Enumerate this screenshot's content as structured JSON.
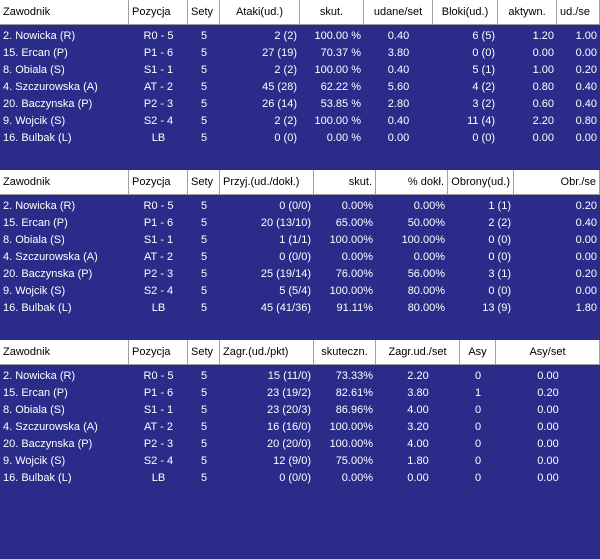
{
  "attack": {
    "headers": [
      "Zawodnik",
      "Pozycja",
      "Sety",
      "Ataki(ud.)",
      "skut.",
      "udane/set",
      "Bloki(ud.)",
      "aktywn.",
      "ud./se"
    ],
    "rows": [
      [
        "2. Nowicka (R)",
        "R0 - 5",
        "5",
        "2 (2)",
        "100.00 %",
        "0.40",
        "6 (5)",
        "1.20",
        "1.00"
      ],
      [
        "15. Ercan (P)",
        "P1 - 6",
        "5",
        "27 (19)",
        "70.37 %",
        "3.80",
        "0 (0)",
        "0.00",
        "0.00"
      ],
      [
        "8. Obiala (S)",
        "S1 - 1",
        "5",
        "2 (2)",
        "100.00 %",
        "0.40",
        "5 (1)",
        "1.00",
        "0.20"
      ],
      [
        "4. Szczurowska (A)",
        "AT - 2",
        "5",
        "45 (28)",
        "62.22 %",
        "5.60",
        "4 (2)",
        "0.80",
        "0.40"
      ],
      [
        "20. Baczynska (P)",
        "P2 - 3",
        "5",
        "26 (14)",
        "53.85 %",
        "2.80",
        "3 (2)",
        "0.60",
        "0.40"
      ],
      [
        "9. Wojcik (S)",
        "S2 - 4",
        "5",
        "2 (2)",
        "100.00 %",
        "0.40",
        "11 (4)",
        "2.20",
        "0.80"
      ],
      [
        "16. Bulbak (L)",
        "LB",
        "5",
        "0 (0)",
        "0.00 %",
        "0.00",
        "0 (0)",
        "0.00",
        "0.00"
      ]
    ]
  },
  "reception": {
    "headers": [
      "Zawodnik",
      "Pozycja",
      "Sety",
      "Przyj.(ud./dokł.)",
      "skut.",
      "% dokł.",
      "Obrony(ud.)",
      "Obr./se"
    ],
    "rows": [
      [
        "2. Nowicka (R)",
        "R0 - 5",
        "5",
        "0 (0/0)",
        "0.00%",
        "0.00%",
        "1 (1)",
        "0.20"
      ],
      [
        "15. Ercan (P)",
        "P1 - 6",
        "5",
        "20 (13/10)",
        "65.00%",
        "50.00%",
        "2 (2)",
        "0.40"
      ],
      [
        "8. Obiala (S)",
        "S1 - 1",
        "5",
        "1 (1/1)",
        "100.00%",
        "100.00%",
        "0 (0)",
        "0.00"
      ],
      [
        "4. Szczurowska (A)",
        "AT - 2",
        "5",
        "0 (0/0)",
        "0.00%",
        "0.00%",
        "0 (0)",
        "0.00"
      ],
      [
        "20. Baczynska (P)",
        "P2 - 3",
        "5",
        "25 (19/14)",
        "76.00%",
        "56.00%",
        "3 (1)",
        "0.20"
      ],
      [
        "9. Wojcik (S)",
        "S2 - 4",
        "5",
        "5 (5/4)",
        "100.00%",
        "80.00%",
        "0 (0)",
        "0.00"
      ],
      [
        "16. Bulbak (L)",
        "LB",
        "5",
        "45 (41/36)",
        "91.11%",
        "80.00%",
        "13 (9)",
        "1.80"
      ]
    ]
  },
  "serve": {
    "headers": [
      "Zawodnik",
      "Pozycja",
      "Sety",
      "Zagr.(ud./pkt)",
      "skuteczn.",
      "Zagr.ud./set",
      "Asy",
      "Asy/set"
    ],
    "rows": [
      [
        "2. Nowicka (R)",
        "R0 - 5",
        "5",
        "15 (11/0)",
        "73.33%",
        "2.20",
        "0",
        "0.00"
      ],
      [
        "15. Ercan (P)",
        "P1 - 6",
        "5",
        "23 (19/2)",
        "82.61%",
        "3.80",
        "1",
        "0.20"
      ],
      [
        "8. Obiala (S)",
        "S1 - 1",
        "5",
        "23 (20/3)",
        "86.96%",
        "4.00",
        "0",
        "0.00"
      ],
      [
        "4. Szczurowska (A)",
        "AT - 2",
        "5",
        "16 (16/0)",
        "100.00%",
        "3.20",
        "0",
        "0.00"
      ],
      [
        "20. Baczynska (P)",
        "P2 - 3",
        "5",
        "20 (20/0)",
        "100.00%",
        "4.00",
        "0",
        "0.00"
      ],
      [
        "9. Wojcik (S)",
        "S2 - 4",
        "5",
        "12 (9/0)",
        "75.00%",
        "1.80",
        "0",
        "0.00"
      ],
      [
        "16. Bulbak (L)",
        "LB",
        "5",
        "0 (0/0)",
        "0.00%",
        "0.00",
        "0",
        "0.00"
      ]
    ]
  },
  "colors": {
    "background": "#2b2b8a",
    "header_bg": "#ffffff",
    "text": "#ffffff"
  }
}
